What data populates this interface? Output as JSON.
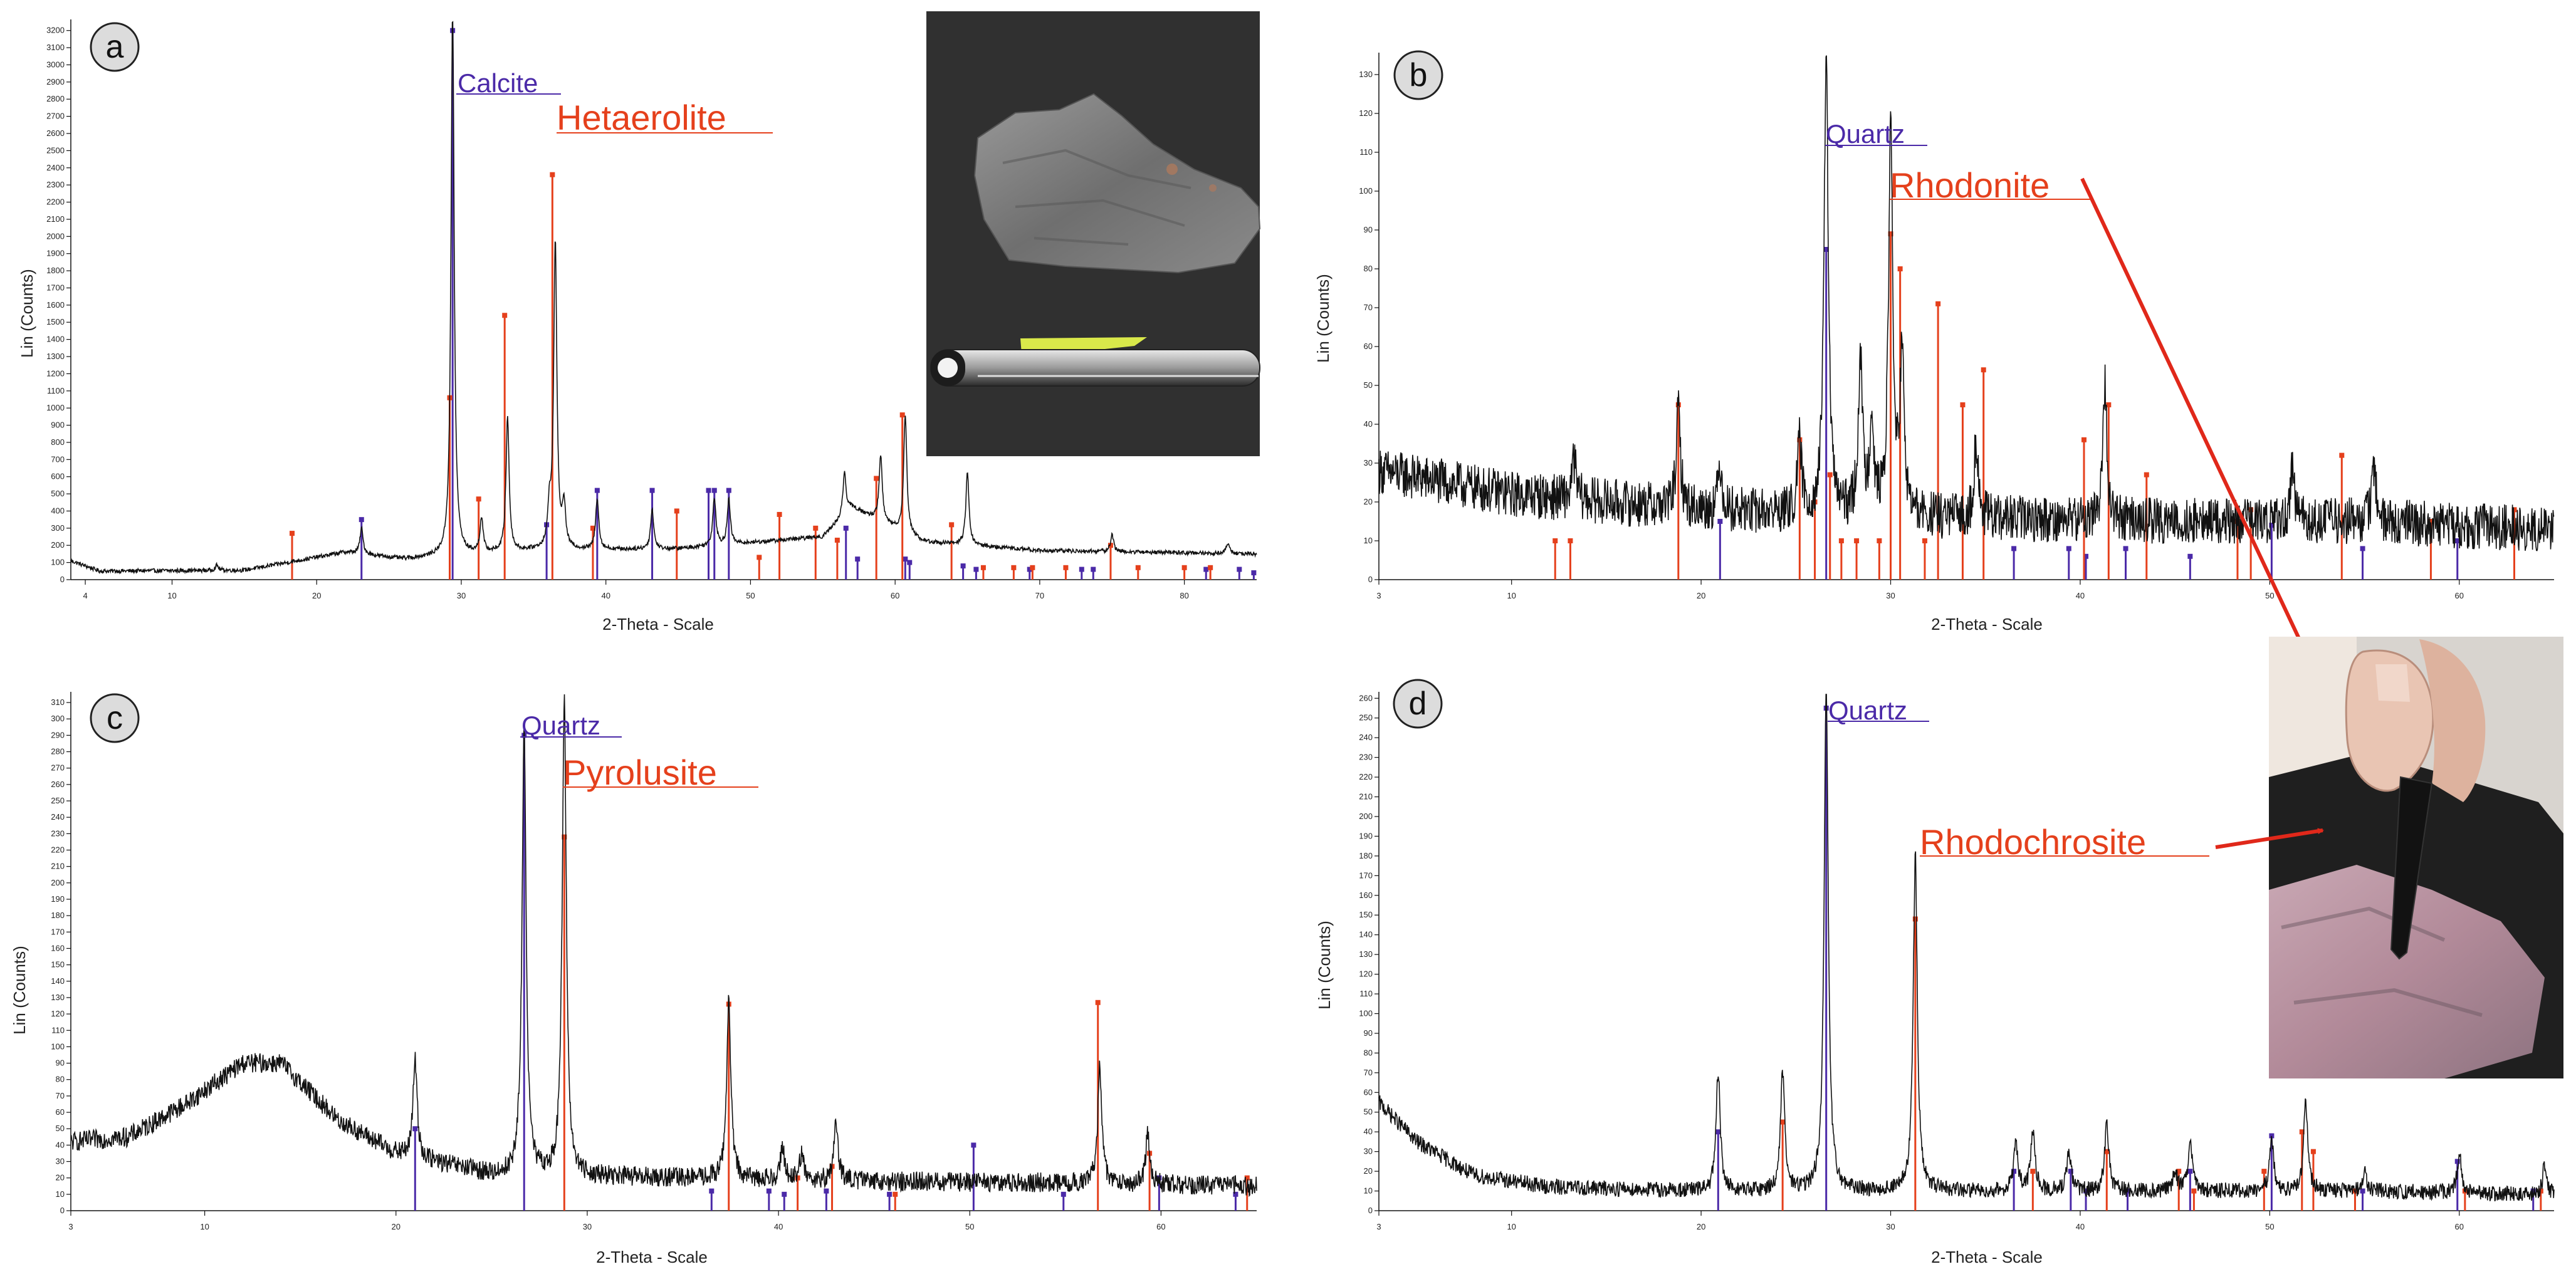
{
  "colors": {
    "trace": "#111111",
    "phase_purple": "#4b2aa8",
    "phase_red": "#e5401c",
    "arrow_red": "#e0281a",
    "panel_label_fill": "#dcdcdc"
  },
  "chart_data": [
    {
      "type": "line",
      "panel_label": "a",
      "title": "",
      "xlabel": "2-Theta - Scale",
      "ylabel": "Lin (Counts)",
      "xlim": [
        3,
        85
      ],
      "ylim": [
        0,
        3250
      ],
      "xticks": [
        4,
        10,
        20,
        30,
        40,
        50,
        60,
        70,
        80
      ],
      "yticks": [
        0,
        100,
        200,
        300,
        400,
        500,
        600,
        700,
        800,
        900,
        1000,
        1100,
        1200,
        1300,
        1400,
        1500,
        1600,
        1700,
        1800,
        1900,
        2000,
        2100,
        2200,
        2300,
        2400,
        2500,
        2600,
        2700,
        2800,
        2900,
        3000,
        3100,
        3200
      ],
      "baseline": [
        [
          3,
          110
        ],
        [
          5,
          50
        ],
        [
          15,
          55
        ],
        [
          22,
          160
        ],
        [
          26,
          120
        ],
        [
          35,
          170
        ],
        [
          45,
          180
        ],
        [
          55,
          250
        ],
        [
          57,
          420
        ],
        [
          62,
          220
        ],
        [
          70,
          170
        ],
        [
          85,
          150
        ]
      ],
      "noise": 12,
      "peaks": [
        [
          13.1,
          30
        ],
        [
          23.1,
          150
        ],
        [
          29.4,
          3200
        ],
        [
          31.4,
          200
        ],
        [
          33.2,
          780
        ],
        [
          36.1,
          220
        ],
        [
          36.5,
          1800
        ],
        [
          37.1,
          250
        ],
        [
          39.4,
          300
        ],
        [
          43.2,
          230
        ],
        [
          47.5,
          280
        ],
        [
          48.5,
          260
        ],
        [
          56.5,
          250
        ],
        [
          59.0,
          380
        ],
        [
          60.7,
          690
        ],
        [
          65.0,
          420
        ],
        [
          75.0,
          100
        ],
        [
          83.0,
          60
        ]
      ],
      "series": [
        {
          "name": "Calcite",
          "color": "#4b2aa8",
          "sticks": [
            [
              23.1,
              350
            ],
            [
              29.4,
              3200
            ],
            [
              35.9,
              320
            ],
            [
              39.4,
              520
            ],
            [
              43.2,
              520
            ],
            [
              47.1,
              520
            ],
            [
              47.5,
              520
            ],
            [
              48.5,
              520
            ],
            [
              56.6,
              300
            ],
            [
              57.4,
              120
            ],
            [
              60.7,
              120
            ],
            [
              61.0,
              100
            ],
            [
              64.7,
              80
            ],
            [
              65.6,
              60
            ],
            [
              69.3,
              60
            ],
            [
              72.9,
              60
            ],
            [
              73.7,
              60
            ],
            [
              81.5,
              60
            ],
            [
              83.8,
              60
            ],
            [
              84.8,
              40
            ]
          ]
        },
        {
          "name": "Hetaerolite",
          "color": "#e5401c",
          "sticks": [
            [
              18.3,
              270
            ],
            [
              29.2,
              1060
            ],
            [
              31.2,
              470
            ],
            [
              33.0,
              1540
            ],
            [
              36.3,
              2360
            ],
            [
              39.1,
              300
            ],
            [
              44.9,
              400
            ],
            [
              50.6,
              130
            ],
            [
              52.0,
              380
            ],
            [
              54.5,
              300
            ],
            [
              56.0,
              230
            ],
            [
              58.7,
              590
            ],
            [
              60.5,
              960
            ],
            [
              63.9,
              320
            ],
            [
              66.1,
              70
            ],
            [
              68.2,
              70
            ],
            [
              69.5,
              70
            ],
            [
              71.8,
              70
            ],
            [
              74.9,
              200
            ],
            [
              76.8,
              70
            ],
            [
              80.0,
              70
            ],
            [
              81.8,
              70
            ]
          ]
        }
      ],
      "annotations": [
        {
          "text": "Calcite",
          "color": "#4b2aa8"
        },
        {
          "text": "Hetaerolite",
          "color": "#e5401c"
        }
      ],
      "inset_photo": "mineral-specimen-with-pen"
    },
    {
      "type": "line",
      "panel_label": "b",
      "title": "",
      "xlabel": "2-Theta - Scale",
      "ylabel": "Lin (Counts)",
      "xlim": [
        3,
        65
      ],
      "ylim": [
        0,
        135
      ],
      "xticks": [
        3,
        10,
        20,
        30,
        40,
        50,
        60
      ],
      "yticks": [
        0,
        10,
        20,
        30,
        40,
        50,
        60,
        70,
        80,
        90,
        100,
        110,
        120,
        130
      ],
      "baseline": [
        [
          3,
          28
        ],
        [
          10,
          22
        ],
        [
          20,
          18
        ],
        [
          30,
          16
        ],
        [
          45,
          15
        ],
        [
          55,
          15
        ],
        [
          65,
          13
        ]
      ],
      "noise": 6,
      "peaks": [
        [
          13.3,
          10
        ],
        [
          18.8,
          25
        ],
        [
          21.0,
          12
        ],
        [
          25.2,
          18
        ],
        [
          26.6,
          120
        ],
        [
          28.4,
          40
        ],
        [
          29.0,
          25
        ],
        [
          30.0,
          100
        ],
        [
          30.6,
          40
        ],
        [
          34.5,
          20
        ],
        [
          41.3,
          35
        ],
        [
          51.2,
          15
        ],
        [
          55.5,
          15
        ]
      ],
      "series": [
        {
          "name": "Quartz",
          "color": "#4b2aa8",
          "sticks": [
            [
              21.0,
              15
            ],
            [
              26.6,
              85
            ],
            [
              36.5,
              8
            ],
            [
              39.4,
              8
            ],
            [
              40.3,
              6
            ],
            [
              42.4,
              8
            ],
            [
              45.8,
              6
            ],
            [
              50.1,
              14
            ],
            [
              54.9,
              8
            ],
            [
              59.9,
              10
            ]
          ]
        },
        {
          "name": "Rhodonite",
          "color": "#e5401c",
          "sticks": [
            [
              12.3,
              10
            ],
            [
              13.1,
              10
            ],
            [
              18.8,
              45
            ],
            [
              25.2,
              36
            ],
            [
              26.0,
              20
            ],
            [
              26.8,
              27
            ],
            [
              27.4,
              10
            ],
            [
              28.2,
              10
            ],
            [
              29.4,
              10
            ],
            [
              30.0,
              89
            ],
            [
              30.5,
              80
            ],
            [
              31.8,
              10
            ],
            [
              32.5,
              71
            ],
            [
              33.8,
              45
            ],
            [
              34.9,
              54
            ],
            [
              40.2,
              36
            ],
            [
              41.5,
              45
            ],
            [
              43.5,
              27
            ],
            [
              48.3,
              15
            ],
            [
              49.0,
              18
            ],
            [
              53.8,
              32
            ],
            [
              58.5,
              15
            ],
            [
              62.9,
              18
            ]
          ]
        }
      ],
      "annotations": [
        {
          "text": "Quartz",
          "color": "#4b2aa8"
        },
        {
          "text": "Rhodonite",
          "color": "#e5401c"
        }
      ]
    },
    {
      "type": "line",
      "panel_label": "c",
      "title": "",
      "xlabel": "2-Theta - Scale",
      "ylabel": "Lin (Counts)",
      "xlim": [
        3,
        65
      ],
      "ylim": [
        0,
        315
      ],
      "xticks": [
        3,
        10,
        20,
        30,
        40,
        50,
        60
      ],
      "yticks": [
        0,
        10,
        20,
        30,
        40,
        50,
        60,
        70,
        80,
        90,
        100,
        110,
        120,
        130,
        140,
        150,
        160,
        170,
        180,
        190,
        200,
        210,
        220,
        230,
        240,
        250,
        260,
        270,
        280,
        290,
        300,
        310
      ],
      "baseline": [
        [
          3,
          42
        ],
        [
          6,
          45
        ],
        [
          9,
          65
        ],
        [
          12,
          90
        ],
        [
          14,
          90
        ],
        [
          17,
          55
        ],
        [
          20,
          35
        ],
        [
          25,
          22
        ],
        [
          35,
          20
        ],
        [
          45,
          18
        ],
        [
          55,
          17
        ],
        [
          65,
          15
        ]
      ],
      "noise": 6,
      "peaks": [
        [
          21.0,
          60
        ],
        [
          26.7,
          270
        ],
        [
          28.8,
          290
        ],
        [
          37.4,
          110
        ],
        [
          40.2,
          20
        ],
        [
          41.2,
          15
        ],
        [
          43.0,
          35
        ],
        [
          56.8,
          70
        ],
        [
          59.3,
          30
        ]
      ],
      "series": [
        {
          "name": "Quartz",
          "color": "#4b2aa8",
          "sticks": [
            [
              21.0,
              50
            ],
            [
              26.7,
              290
            ],
            [
              36.5,
              12
            ],
            [
              39.5,
              12
            ],
            [
              40.3,
              10
            ],
            [
              42.5,
              12
            ],
            [
              45.8,
              10
            ],
            [
              50.2,
              40
            ],
            [
              54.9,
              10
            ],
            [
              59.9,
              20
            ],
            [
              63.9,
              10
            ]
          ]
        },
        {
          "name": "Pyrolusite",
          "color": "#e5401c",
          "sticks": [
            [
              28.8,
              228
            ],
            [
              37.4,
              126
            ],
            [
              41.0,
              20
            ],
            [
              42.8,
              27
            ],
            [
              46.1,
              10
            ],
            [
              56.7,
              127
            ],
            [
              59.4,
              35
            ],
            [
              64.5,
              20
            ]
          ]
        }
      ],
      "annotations": [
        {
          "text": "Quartz",
          "color": "#4b2aa8"
        },
        {
          "text": "Pyrolusite",
          "color": "#e5401c"
        }
      ]
    },
    {
      "type": "line",
      "panel_label": "d",
      "title": "",
      "xlabel": "2-Theta - Scale",
      "ylabel": "Lin (Counts)",
      "xlim": [
        3,
        65
      ],
      "ylim": [
        0,
        262
      ],
      "xticks": [
        3,
        10,
        20,
        30,
        40,
        50,
        60
      ],
      "yticks": [
        0,
        10,
        20,
        30,
        40,
        50,
        60,
        70,
        80,
        90,
        100,
        110,
        120,
        130,
        140,
        150,
        160,
        170,
        180,
        190,
        200,
        210,
        220,
        230,
        240,
        250,
        260
      ],
      "baseline": [
        [
          3,
          55
        ],
        [
          5,
          35
        ],
        [
          8,
          18
        ],
        [
          12,
          12
        ],
        [
          20,
          10
        ],
        [
          40,
          10
        ],
        [
          55,
          10
        ],
        [
          65,
          8
        ]
      ],
      "noise": 4,
      "peaks": [
        [
          20.9,
          60
        ],
        [
          24.3,
          60
        ],
        [
          26.6,
          255
        ],
        [
          31.3,
          170
        ],
        [
          36.6,
          25
        ],
        [
          37.5,
          30
        ],
        [
          39.4,
          20
        ],
        [
          41.4,
          35
        ],
        [
          45.0,
          10
        ],
        [
          45.8,
          25
        ],
        [
          50.1,
          25
        ],
        [
          51.9,
          45
        ],
        [
          55.0,
          10
        ],
        [
          60.0,
          20
        ],
        [
          64.5,
          15
        ]
      ],
      "series": [
        {
          "name": "Quartz",
          "color": "#4b2aa8",
          "sticks": [
            [
              20.9,
              40
            ],
            [
              26.6,
              255
            ],
            [
              36.5,
              20
            ],
            [
              39.5,
              20
            ],
            [
              40.3,
              10
            ],
            [
              42.5,
              10
            ],
            [
              45.8,
              20
            ],
            [
              50.1,
              38
            ],
            [
              54.9,
              10
            ],
            [
              59.9,
              25
            ],
            [
              63.9,
              10
            ]
          ]
        },
        {
          "name": "Rhodochrosite",
          "color": "#e5401c",
          "sticks": [
            [
              24.3,
              45
            ],
            [
              31.3,
              148
            ],
            [
              37.5,
              20
            ],
            [
              41.4,
              30
            ],
            [
              45.2,
              20
            ],
            [
              46.0,
              10
            ],
            [
              49.7,
              20
            ],
            [
              51.7,
              40
            ],
            [
              52.3,
              30
            ],
            [
              54.5,
              10
            ],
            [
              60.3,
              10
            ],
            [
              64.3,
              10
            ]
          ]
        }
      ],
      "annotations": [
        {
          "text": "Quartz",
          "color": "#4b2aa8"
        },
        {
          "text": "Rhodochrosite",
          "color": "#e5401c"
        }
      ],
      "inset_photo": "rhodochrosite-specimen-held-in-hand"
    }
  ]
}
